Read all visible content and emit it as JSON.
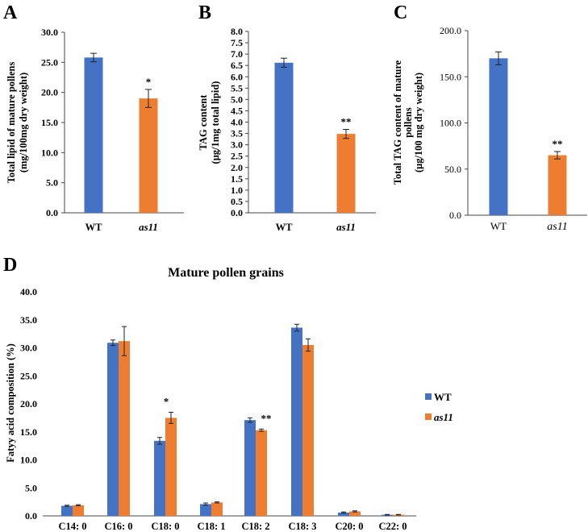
{
  "colors": {
    "wt": "#4472c4",
    "as11": "#ed7d31"
  },
  "chart_data": [
    {
      "panel": "A",
      "type": "bar",
      "categories": [
        "WT",
        "as11"
      ],
      "values": [
        25.8,
        19.0
      ],
      "errors": [
        0.7,
        1.5
      ],
      "significance": [
        "",
        "*"
      ],
      "ylabel_lines": [
        "Total lipid  of mature pollens",
        "(mg/100mg dry weight)"
      ],
      "ylim": [
        0,
        30
      ],
      "yticks": [
        0,
        5,
        10,
        15,
        20,
        25,
        30
      ],
      "tick_labels": [
        "0.0",
        "5.0",
        "10.0",
        "15.0",
        "20.0",
        "25.0",
        "30.0"
      ]
    },
    {
      "panel": "B",
      "type": "bar",
      "categories": [
        "WT",
        "as11"
      ],
      "values": [
        6.62,
        3.48
      ],
      "errors": [
        0.2,
        0.2
      ],
      "significance": [
        "",
        "**"
      ],
      "ylabel_lines": [
        "TAG content",
        "(μg/1mg total lipid)"
      ],
      "ylim": [
        0,
        8
      ],
      "yticks": [
        0,
        0.5,
        1,
        1.5,
        2,
        2.5,
        3,
        3.5,
        4,
        4.5,
        5,
        5.5,
        6,
        6.5,
        7,
        7.5,
        8
      ],
      "tick_labels": [
        "0.0",
        "0.5",
        "1.0",
        "1.5",
        "2.0",
        "2.5",
        "3.0",
        "3.5",
        "4.0",
        "4.5",
        "5.0",
        "5.5",
        "6.0",
        "6.5",
        "7.0",
        "7.5",
        "8.0"
      ]
    },
    {
      "panel": "C",
      "type": "bar",
      "categories": [
        "WT",
        "as11"
      ],
      "values": [
        170,
        65
      ],
      "errors": [
        7,
        4
      ],
      "significance": [
        "",
        "**"
      ],
      "ylabel_lines": [
        "Total TAG content of mature",
        "pollens",
        "(μg/100 mg dry weight)"
      ],
      "ylim": [
        0,
        200
      ],
      "yticks": [
        0,
        50,
        100,
        150,
        200
      ],
      "tick_labels": [
        "0.0",
        "50.0",
        "100.0",
        "150.0",
        "200.0"
      ]
    },
    {
      "panel": "D",
      "type": "bar",
      "title": "Mature pollen grains",
      "ylabel": "Fatyy acid composition (%)",
      "categories": [
        "C14: 0",
        "C16: 0",
        "C18: 0",
        "C18: 1",
        "C18: 2",
        "C18: 3",
        "C20: 0",
        "C22: 0"
      ],
      "series": [
        {
          "name": "WT",
          "values": [
            1.8,
            30.9,
            13.4,
            2.1,
            17.1,
            33.6,
            0.6,
            0.2
          ],
          "errors": [
            0.1,
            0.5,
            0.6,
            0.2,
            0.4,
            0.6,
            0.1,
            0.05
          ]
        },
        {
          "name": "as11",
          "values": [
            1.9,
            31.2,
            17.5,
            2.4,
            15.3,
            30.5,
            0.8,
            0.2
          ],
          "errors": [
            0.1,
            2.6,
            1.0,
            0.1,
            0.2,
            1.1,
            0.1,
            0.05
          ]
        }
      ],
      "significance": [
        "",
        "",
        "*",
        "",
        "**",
        "",
        "",
        ""
      ],
      "ylim": [
        0,
        40
      ],
      "yticks": [
        0,
        5,
        10,
        15,
        20,
        25,
        30,
        35,
        40
      ],
      "tick_labels": [
        "0.0",
        "5.0",
        "10.0",
        "15.0",
        "20.0",
        "25.0",
        "30.0",
        "35.0",
        "40.0"
      ]
    }
  ]
}
